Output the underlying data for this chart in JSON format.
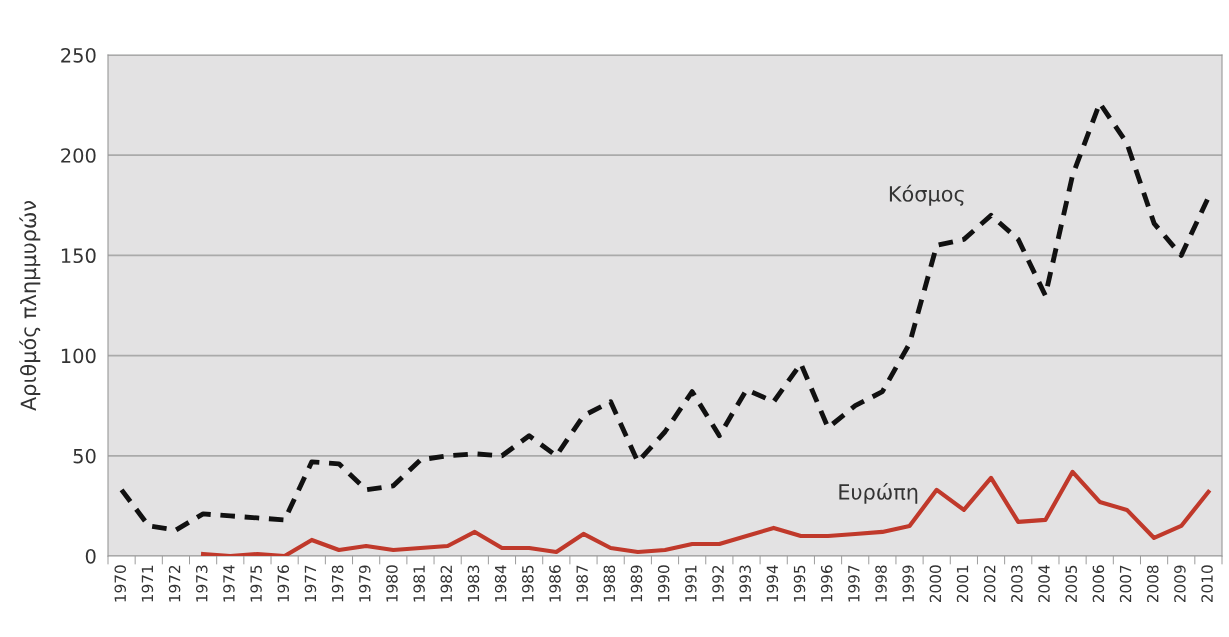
{
  "chart_data": {
    "type": "line",
    "ylabel": "Αριθμός πλημμυρών",
    "categories": [
      "1970",
      "1971",
      "1972",
      "1973",
      "1974",
      "1975",
      "1976",
      "1977",
      "1978",
      "1979",
      "1980",
      "1981",
      "1982",
      "1983",
      "1984",
      "1985",
      "1986",
      "1987",
      "1988",
      "1989",
      "1990",
      "1991",
      "1992",
      "1993",
      "1994",
      "1995",
      "1996",
      "1997",
      "1998",
      "1999",
      "2000",
      "2001",
      "2002",
      "2003",
      "2004",
      "2005",
      "2006",
      "2007",
      "2008",
      "2009",
      "2010"
    ],
    "series": [
      {
        "name": "Κόσμος",
        "color": "#111111",
        "line_style": "dashed",
        "values": [
          33,
          15,
          13,
          21,
          20,
          19,
          18,
          47,
          46,
          33,
          35,
          48,
          50,
          51,
          50,
          60,
          50,
          70,
          77,
          47,
          62,
          82,
          60,
          83,
          77,
          96,
          64,
          75,
          82,
          106,
          155,
          158,
          170,
          158,
          130,
          190,
          226,
          206,
          166,
          150,
          179
        ]
      },
      {
        "name": "Ευρώπη",
        "color": "#c0392b",
        "line_style": "solid",
        "values": [
          null,
          null,
          null,
          1,
          0,
          1,
          0,
          8,
          3,
          5,
          3,
          4,
          5,
          12,
          4,
          4,
          2,
          11,
          4,
          2,
          3,
          6,
          6,
          10,
          14,
          10,
          10,
          11,
          12,
          15,
          33,
          23,
          39,
          17,
          18,
          42,
          27,
          23,
          9,
          15,
          32
        ]
      }
    ],
    "ylim": [
      0,
      250
    ],
    "yticks": [
      0,
      50,
      100,
      150,
      200,
      250
    ],
    "grid": "y",
    "legend": false,
    "marker": "none"
  }
}
